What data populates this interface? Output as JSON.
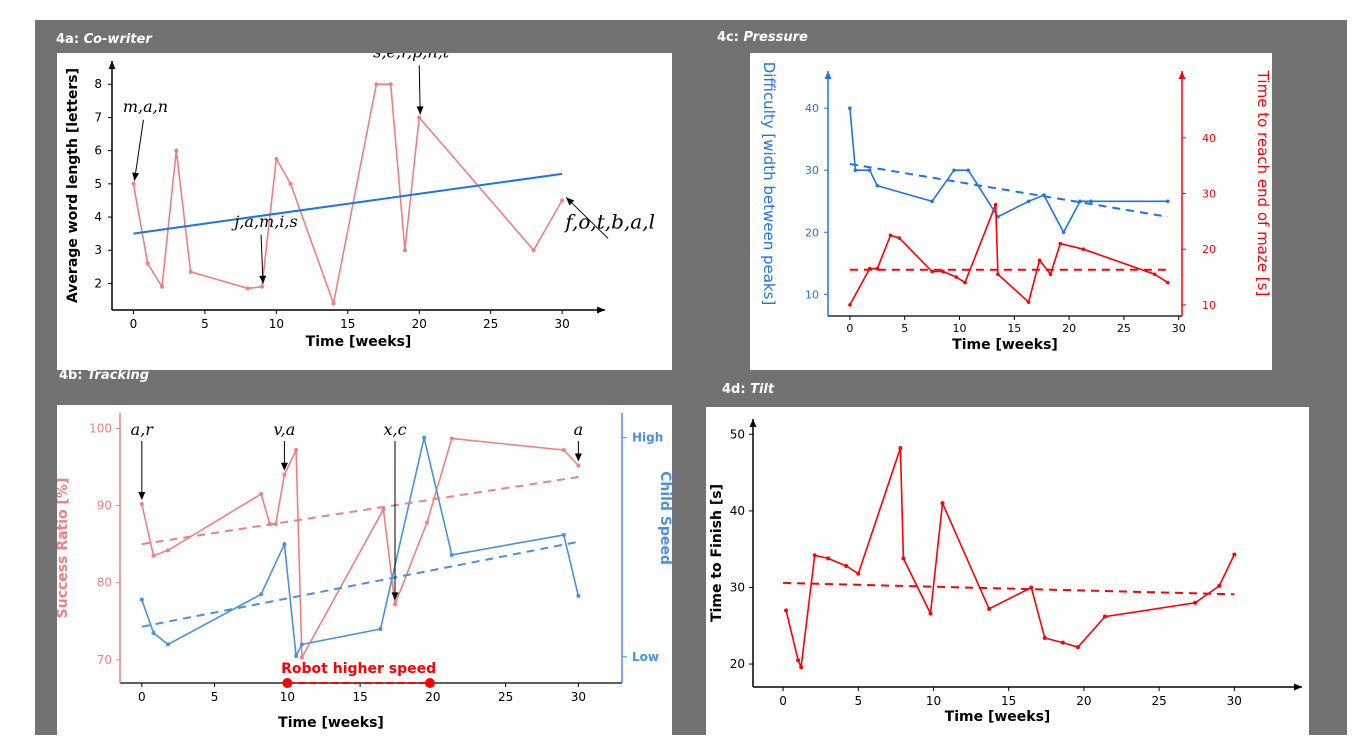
{
  "colors": {
    "frame": "#727272",
    "red": "#ff0000",
    "pink": "#f08080",
    "blue": "#1e73e6",
    "lightblue": "#4a90e2",
    "axis": "#000000"
  },
  "panels": {
    "a": {
      "prefix": "4a:",
      "name": "Co-writer"
    },
    "b": {
      "prefix": "4b:",
      "name": "Tracking"
    },
    "c": {
      "prefix": "4c:",
      "name": "Pressure"
    },
    "d": {
      "prefix": "4d:",
      "name": "Tilt"
    }
  },
  "chart_data": [
    {
      "id": "4a",
      "type": "line",
      "xlabel": "Time [weeks]",
      "ylabel": "Average word length [letters]",
      "xticks": [
        0,
        5,
        10,
        15,
        20,
        25,
        30
      ],
      "yticks": [
        2,
        3,
        4,
        5,
        6,
        7,
        8
      ],
      "xlim": [
        -1.5,
        33
      ],
      "ylim": [
        1.2,
        8.7
      ],
      "series": [
        {
          "color": "#f08080",
          "x": [
            0,
            1,
            2,
            3,
            4,
            8,
            9,
            10,
            11,
            14,
            17,
            18,
            19,
            20,
            28,
            30
          ],
          "y": [
            5.0,
            2.6,
            1.9,
            6.0,
            2.35,
            1.85,
            1.9,
            5.75,
            5.0,
            1.4,
            8.0,
            8.0,
            3.0,
            7.0,
            3.0,
            4.5
          ]
        },
        {
          "color": "#1e73e6",
          "trend": true,
          "x": [
            0,
            30
          ],
          "y": [
            3.5,
            5.3
          ]
        }
      ],
      "annotations": [
        {
          "text": "m,a,n",
          "at": [
            0,
            5.0
          ]
        },
        {
          "text": "j,a,m,i,s",
          "at": [
            9,
            1.9
          ]
        },
        {
          "text": "s,e,r,p,n,t",
          "at": [
            20,
            7.0
          ]
        },
        {
          "text": "f,o,t,b,a,l",
          "at": [
            30,
            4.5
          ]
        }
      ]
    },
    {
      "id": "4b",
      "type": "line",
      "xlabel": "Time [weeks]",
      "ylabel": "Success Ratio [%]",
      "y2label": "Child Speed",
      "xticks": [
        0,
        5,
        10,
        15,
        20,
        25,
        30
      ],
      "yticks": [
        70,
        80,
        90,
        100
      ],
      "y2ticks": [
        "High",
        "Low"
      ],
      "xlim": [
        -1.5,
        33
      ],
      "ylim": [
        67,
        102
      ],
      "series": [
        {
          "name": "Success Ratio",
          "color": "#f08080",
          "x": [
            0,
            0.8,
            1.8,
            8.2,
            8.8,
            9.2,
            9.8,
            10.6,
            11,
            16.6,
            17.4,
            19.6,
            21.3,
            29,
            30
          ],
          "y": [
            90.2,
            83.5,
            84.2,
            91.5,
            87.6,
            87.6,
            94,
            97.2,
            70.3,
            89.5,
            77.2,
            87.8,
            98.7,
            97.2,
            95.2
          ]
        },
        {
          "name": "Child Speed",
          "color": "#4a90e2",
          "x": [
            0,
            0.8,
            1.8,
            8.2,
            9.8,
            10.6,
            11,
            16.4,
            19.4,
            21.3,
            29,
            30
          ],
          "y": [
            77.8,
            73.5,
            72,
            78.5,
            85,
            70.5,
            72,
            74,
            98.8,
            83.6,
            86.2,
            78.3
          ]
        },
        {
          "color": "#f08080",
          "trend": true,
          "x": [
            0,
            30
          ],
          "y": [
            85,
            93.7
          ]
        },
        {
          "color": "#4a90e2",
          "trend": true,
          "x": [
            0,
            30
          ],
          "y": [
            74.3,
            85.3
          ]
        }
      ],
      "annotations": [
        {
          "text": "a,r",
          "at": [
            0,
            90.2
          ]
        },
        {
          "text": "v,a",
          "at": [
            9.8,
            94
          ]
        },
        {
          "text": "x,c",
          "at": [
            17.4,
            77.2
          ]
        },
        {
          "text": "a",
          "at": [
            30,
            95.2
          ]
        }
      ],
      "range_marker": {
        "label": "Robot higher speed",
        "from": 10,
        "to": 19.8
      }
    },
    {
      "id": "4c",
      "type": "line",
      "xlabel": "Time [weeks]",
      "ylabel": "Difficulty [width between peaks]",
      "y2label": "Time to reach end of maze [s]",
      "xticks": [
        0,
        5,
        10,
        15,
        20,
        25,
        30
      ],
      "yticks": [
        10,
        20,
        30,
        40
      ],
      "y2ticks": [
        10,
        20,
        30,
        40
      ],
      "xlim": [
        -2,
        30.3
      ],
      "ylim": [
        6.5,
        46
      ],
      "y2lim": [
        8,
        52
      ],
      "series": [
        {
          "name": "Difficulty",
          "color": "#1e73e6",
          "axis": "left",
          "x": [
            0,
            0.5,
            1.8,
            2.5,
            7.5,
            9.5,
            10.8,
            13.5,
            16.3,
            17.7,
            19.5,
            21,
            22,
            29
          ],
          "y": [
            40,
            30,
            30,
            27.5,
            25,
            30,
            30,
            22.5,
            25,
            26,
            20,
            25,
            25,
            25
          ]
        },
        {
          "name": "Time to reach end of maze",
          "color": "#ff0000",
          "axis": "right",
          "x": [
            0,
            1.8,
            2.5,
            3.7,
            4.5,
            7.5,
            8.5,
            9.7,
            10.5,
            13.3,
            13.5,
            16.3,
            17.3,
            18.3,
            19.2,
            21.3,
            27.8,
            29
          ],
          "y": [
            10,
            16.5,
            16.5,
            22.5,
            22,
            16,
            16,
            15,
            14,
            28,
            15.5,
            10.5,
            18,
            15.5,
            21,
            20,
            15.5,
            14
          ]
        },
        {
          "color": "#1e73e6",
          "trend": true,
          "axis": "left",
          "x": [
            0,
            29
          ],
          "y": [
            31,
            22.5
          ]
        },
        {
          "color": "#ff0000",
          "trend": true,
          "axis": "right",
          "x": [
            0,
            29
          ],
          "y": [
            16.3,
            16.3
          ]
        }
      ]
    },
    {
      "id": "4d",
      "type": "line",
      "xlabel": "Time [weeks]",
      "ylabel": "Time to Finish [s]",
      "xticks": [
        0,
        5,
        10,
        15,
        20,
        25,
        30
      ],
      "yticks": [
        20,
        30,
        40,
        50
      ],
      "xlim": [
        -2,
        34.5
      ],
      "ylim": [
        17,
        52
      ],
      "series": [
        {
          "color": "#ff0000",
          "x": [
            0.2,
            1.0,
            1.2,
            2.1,
            3.0,
            4.2,
            5.0,
            7.8,
            8.0,
            9.8,
            10.6,
            13.7,
            16.5,
            17.4,
            18.6,
            19.6,
            21.4,
            27.4,
            29.0,
            30.0
          ],
          "y": [
            27,
            20.5,
            19.6,
            34.2,
            33.8,
            32.8,
            31.8,
            48.2,
            33.8,
            26.6,
            41,
            27.2,
            30,
            23.4,
            22.8,
            22.2,
            26.2,
            28,
            30.2,
            34.3
          ]
        },
        {
          "color": "#ff0000",
          "trend": true,
          "x": [
            0,
            30
          ],
          "y": [
            30.6,
            29.1
          ]
        }
      ]
    }
  ]
}
